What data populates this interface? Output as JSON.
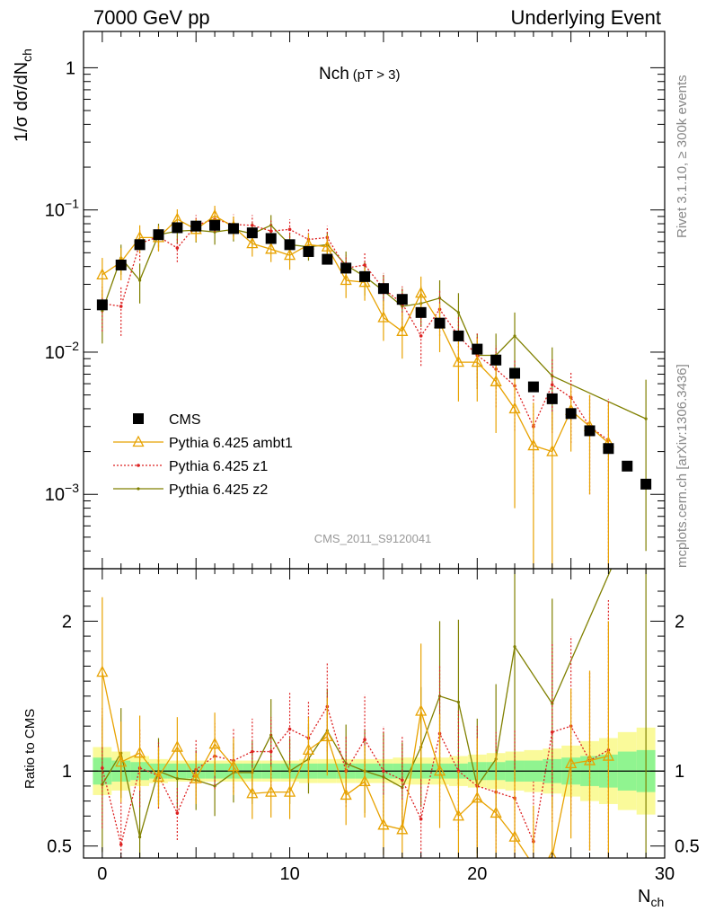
{
  "header": {
    "left": "7000 GeV pp",
    "right": "Underlying Event"
  },
  "side": {
    "rivet": "Rivet 3.1.10, ≥ 300k events",
    "mcplots": "mcplots.cern.ch [arXiv:1306.3436]"
  },
  "plot_title": {
    "main": "Nch",
    "sub": "(pT >  3)"
  },
  "watermark": "CMS_2011_S9120041",
  "colors": {
    "cms": "#000000",
    "ambt1": "#e8a200",
    "z1": "#dd2222",
    "z2": "#808000",
    "band_inner": "#90f490",
    "band_outer": "#fafa9a"
  },
  "chart_data": [
    {
      "type": "scatter",
      "title": "Nch (pT >  3)",
      "xlabel": "N_ch",
      "ylabel": "1/σ dσ/dN_ch",
      "yscale": "log",
      "xlim": [
        -1,
        30
      ],
      "ylim": [
        0.0003,
        1.8
      ],
      "y_ticks": [
        {
          "v": 1,
          "b": "1",
          "e": ""
        },
        {
          "v": 0.1,
          "b": "10",
          "e": "−1"
        },
        {
          "v": 0.01,
          "b": "10",
          "e": "−2"
        },
        {
          "v": 0.001,
          "b": "10",
          "e": "−3"
        }
      ],
      "legend_position": "lower-left",
      "series": [
        {
          "name": "CMS",
          "key": "cms",
          "style": "square",
          "x": [
            0,
            1,
            2,
            3,
            4,
            5,
            6,
            7,
            8,
            9,
            10,
            11,
            12,
            13,
            14,
            15,
            16,
            17,
            18,
            19,
            20,
            21,
            22,
            23,
            24,
            25,
            26,
            27,
            28,
            29
          ],
          "y": [
            0.0215,
            0.041,
            0.057,
            0.067,
            0.075,
            0.077,
            0.078,
            0.074,
            0.069,
            0.063,
            0.057,
            0.051,
            0.045,
            0.039,
            0.034,
            0.028,
            0.0235,
            0.019,
            0.016,
            0.013,
            0.0105,
            0.0088,
            0.0071,
            0.0057,
            0.0047,
            0.0037,
            0.0028,
            0.0021,
            0.00158,
            0.00118
          ]
        },
        {
          "name": "Pythia 6.425 ambt1",
          "key": "ambt1",
          "style": "triangle",
          "x": [
            0,
            1,
            2,
            3,
            4,
            5,
            6,
            7,
            8,
            9,
            10,
            11,
            12,
            13,
            14,
            15,
            16,
            17,
            18,
            19,
            20,
            21,
            22,
            23,
            24,
            25,
            26,
            27
          ],
          "y": [
            0.035,
            0.043,
            0.064,
            0.064,
            0.086,
            0.073,
            0.091,
            0.076,
            0.058,
            0.053,
            0.048,
            0.057,
            0.055,
            0.032,
            0.031,
            0.0175,
            0.014,
            0.026,
            0.016,
            0.0085,
            0.0085,
            0.0062,
            0.004,
            0.0022,
            0.002,
            0.0039,
            0.003,
            0.0023
          ],
          "err": [
            0.011,
            0.011,
            0.014,
            0.013,
            0.015,
            0.013,
            0.016,
            0.014,
            0.011,
            0.01,
            0.01,
            0.011,
            0.011,
            0.008,
            0.008,
            0.0055,
            0.005,
            0.008,
            0.006,
            0.004,
            0.004,
            0.0035,
            0.0032,
            0.0022,
            0.0018,
            0.0019,
            0.002,
            0.0021
          ]
        },
        {
          "name": "Pythia 6.425 z1",
          "key": "z1",
          "style": "dot",
          "x": [
            0,
            1,
            2,
            3,
            4,
            5,
            6,
            7,
            8,
            9,
            10,
            11,
            12,
            13,
            14,
            15,
            16,
            17,
            18,
            19,
            20,
            21,
            22,
            23,
            24,
            25,
            26,
            27
          ],
          "y": [
            0.022,
            0.021,
            0.058,
            0.065,
            0.054,
            0.078,
            0.086,
            0.079,
            0.078,
            0.071,
            0.073,
            0.062,
            0.064,
            0.039,
            0.041,
            0.028,
            0.022,
            0.013,
            0.02,
            0.013,
            0.0095,
            0.0076,
            0.0058,
            0.003,
            0.0059,
            0.0048,
            0.003,
            0.0024
          ],
          "err": [
            0.008,
            0.008,
            0.014,
            0.013,
            0.011,
            0.014,
            0.016,
            0.014,
            0.014,
            0.013,
            0.013,
            0.012,
            0.013,
            0.009,
            0.009,
            0.008,
            0.007,
            0.005,
            0.007,
            0.005,
            0.004,
            0.0035,
            0.003,
            0.002,
            0.0032,
            0.0025,
            0.002,
            0.0023
          ]
        },
        {
          "name": "Pythia 6.425 z2",
          "key": "z2",
          "style": "smalldot",
          "x": [
            0,
            1,
            2,
            3,
            4,
            5,
            6,
            7,
            8,
            9,
            10,
            11,
            12,
            13,
            14,
            15,
            16,
            17,
            18,
            19,
            20,
            21,
            22,
            24,
            29
          ],
          "y": [
            0.0195,
            0.046,
            0.032,
            0.067,
            0.071,
            0.072,
            0.07,
            0.073,
            0.068,
            0.078,
            0.057,
            0.055,
            0.057,
            0.041,
            0.034,
            0.027,
            0.021,
            0.022,
            0.024,
            0.019,
            0.0095,
            0.0095,
            0.013,
            0.0068,
            0.0034
          ],
          "err": [
            0.008,
            0.011,
            0.01,
            0.013,
            0.013,
            0.013,
            0.013,
            0.013,
            0.013,
            0.014,
            0.012,
            0.011,
            0.012,
            0.01,
            0.009,
            0.008,
            0.007,
            0.007,
            0.008,
            0.007,
            0.004,
            0.004,
            0.006,
            0.004,
            0.003
          ]
        }
      ]
    },
    {
      "type": "line",
      "ylabel": "Ratio to CMS",
      "xlabel": "N_ch",
      "xlim": [
        -1,
        30
      ],
      "ylim": [
        0.42,
        2.35
      ],
      "y_tick_labels": [
        "0.5",
        "1",
        "2"
      ],
      "y_tick_values": [
        0.5,
        1,
        2
      ],
      "x_tick_labels": [
        "0",
        "10",
        "20",
        "30"
      ],
      "x_tick_values": [
        0,
        10,
        20,
        30
      ],
      "reference_line": 1,
      "band": {
        "x": [
          0,
          1,
          2,
          3,
          4,
          5,
          6,
          7,
          8,
          9,
          10,
          11,
          12,
          13,
          14,
          15,
          16,
          17,
          18,
          19,
          20,
          21,
          22,
          23,
          24,
          25,
          26,
          27,
          28,
          29
        ],
        "inner": [
          0.09,
          0.07,
          0.06,
          0.05,
          0.05,
          0.05,
          0.05,
          0.05,
          0.05,
          0.05,
          0.05,
          0.05,
          0.05,
          0.05,
          0.05,
          0.05,
          0.05,
          0.05,
          0.05,
          0.05,
          0.06,
          0.06,
          0.07,
          0.07,
          0.08,
          0.09,
          0.1,
          0.11,
          0.13,
          0.14
        ],
        "outer": [
          0.16,
          0.13,
          0.1,
          0.08,
          0.07,
          0.07,
          0.07,
          0.07,
          0.07,
          0.07,
          0.07,
          0.08,
          0.08,
          0.08,
          0.08,
          0.08,
          0.09,
          0.09,
          0.09,
          0.1,
          0.11,
          0.12,
          0.13,
          0.14,
          0.15,
          0.17,
          0.2,
          0.22,
          0.26,
          0.29
        ]
      },
      "series": [
        {
          "name": "Pythia 6.425 ambt1",
          "key": "ambt1",
          "x": [
            0,
            1,
            2,
            3,
            4,
            5,
            6,
            7,
            8,
            9,
            10,
            11,
            12,
            13,
            14,
            15,
            16,
            17,
            18,
            19,
            20,
            21,
            22,
            23,
            24,
            25,
            26,
            27
          ],
          "y": [
            1.66,
            1.06,
            1.12,
            0.96,
            1.16,
            0.95,
            1.18,
            1.03,
            0.85,
            0.86,
            0.86,
            1.14,
            1.23,
            0.84,
            0.93,
            0.64,
            0.61,
            1.4,
            1.0,
            0.7,
            0.82,
            0.72,
            0.56,
            0.37,
            0.43,
            1.05,
            1.07,
            1.1
          ],
          "err": [
            0.5,
            0.27,
            0.25,
            0.2,
            0.2,
            0.17,
            0.21,
            0.19,
            0.17,
            0.17,
            0.18,
            0.22,
            0.26,
            0.2,
            0.24,
            0.2,
            0.2,
            0.45,
            0.38,
            0.3,
            0.4,
            0.4,
            0.45,
            0.4,
            0.4,
            0.5,
            0.6,
            0.9
          ]
        },
        {
          "name": "Pythia 6.425 z1",
          "key": "z1",
          "x": [
            0,
            1,
            2,
            3,
            4,
            5,
            6,
            7,
            8,
            9,
            10,
            11,
            12,
            13,
            14,
            15,
            16,
            17,
            18,
            19,
            20,
            21,
            22,
            23,
            24,
            25,
            26,
            27
          ],
          "y": [
            1.02,
            0.51,
            1.02,
            0.97,
            0.72,
            1.01,
            1.1,
            1.07,
            1.13,
            1.13,
            1.28,
            1.22,
            1.43,
            1.0,
            1.21,
            1.0,
            0.94,
            0.68,
            1.25,
            1.0,
            0.9,
            0.86,
            0.82,
            0.53,
            1.26,
            1.3,
            1.07,
            1.14
          ],
          "err": [
            0.4,
            0.28,
            0.26,
            0.22,
            0.18,
            0.2,
            0.22,
            0.21,
            0.22,
            0.23,
            0.25,
            0.25,
            0.3,
            0.24,
            0.3,
            0.3,
            0.3,
            0.3,
            0.45,
            0.4,
            0.4,
            0.4,
            0.45,
            0.4,
            0.6,
            0.6,
            0.6,
            1.0
          ]
        },
        {
          "name": "Pythia 6.425 z2",
          "key": "z2",
          "x": [
            0,
            1,
            2,
            3,
            4,
            5,
            6,
            7,
            8,
            9,
            10,
            11,
            12,
            13,
            14,
            15,
            16,
            17,
            18,
            19,
            20,
            21,
            22,
            24,
            29
          ],
          "y": [
            0.91,
            1.12,
            0.56,
            1.0,
            0.95,
            0.94,
            0.9,
            0.99,
            0.99,
            1.24,
            1.0,
            1.08,
            1.27,
            1.05,
            1.0,
            0.96,
            0.89,
            1.16,
            1.5,
            1.46,
            0.9,
            1.08,
            1.83,
            1.45,
            2.88
          ],
          "err": [
            0.45,
            0.3,
            0.32,
            0.22,
            0.2,
            0.2,
            0.2,
            0.2,
            0.21,
            0.24,
            0.22,
            0.23,
            0.28,
            0.26,
            0.28,
            0.3,
            0.3,
            0.4,
            0.5,
            0.55,
            0.45,
            0.5,
            0.9,
            0.7,
            2.6
          ]
        }
      ]
    }
  ]
}
